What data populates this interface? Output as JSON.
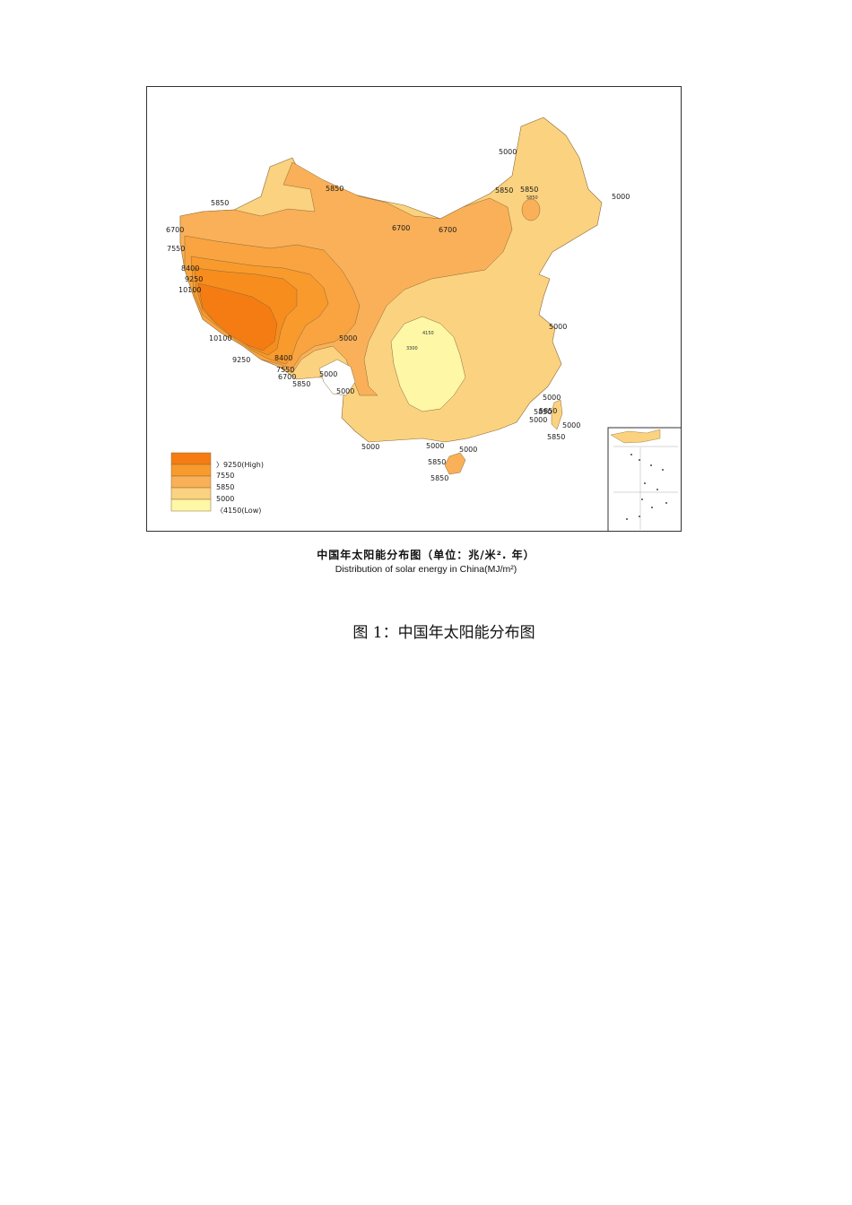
{
  "map": {
    "legend": [
      {
        "label": "〉9250(High)",
        "color": "#f57c12"
      },
      {
        "label": "7550",
        "color": "#f99a2c"
      },
      {
        "label": "5850",
        "color": "#fab058"
      },
      {
        "label": "5000",
        "color": "#fbd27f"
      },
      {
        "label": "〈4150(Low)",
        "color": "#fdf7a6"
      }
    ],
    "contour_labels": [
      "5000",
      "5850",
      "5850",
      "6700",
      "7550",
      "8400",
      "9250",
      "10100",
      "10100",
      "9250",
      "8400",
      "7550",
      "6700",
      "5850",
      "5000",
      "5000",
      "6700",
      "6700",
      "5000",
      "5850",
      "5000",
      "5000",
      "5000",
      "5850",
      "5000",
      "5850",
      "5000",
      "5000",
      "5000",
      "5000",
      "5850",
      "5850",
      "5850",
      "5850"
    ],
    "small_labels": [
      "5850",
      "4150",
      "3300"
    ]
  },
  "caption": {
    "chinese": "中国年太阳能分布图（单位：兆/米². 年）",
    "english": "Distribution of solar energy in China(MJ/m²)"
  },
  "figure_caption": "图 1：中国年太阳能分布图"
}
